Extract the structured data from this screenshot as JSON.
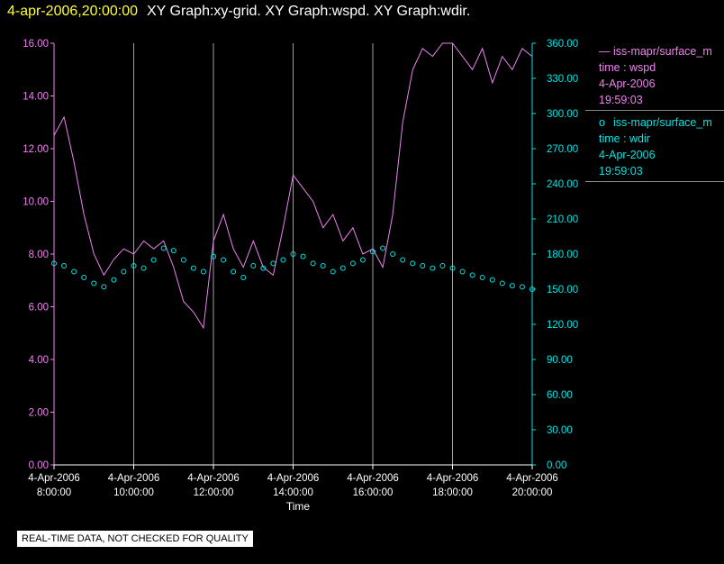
{
  "header": {
    "timestamp": "4-apr-2006,20:00:00",
    "titles": "XY Graph:xy-grid.  XY Graph:wspd.  XY Graph:wdir."
  },
  "colors": {
    "wspd": "#ee82ee",
    "wdir": "#00e5e5",
    "grid": "#a0a0a0",
    "timestamp": "#ffff33"
  },
  "legend": [
    {
      "marker": "line",
      "source": "iss-mapr/surface_m",
      "var": "time : wspd",
      "date": "4-Apr-2006",
      "time": "19:59:03"
    },
    {
      "marker": "circle",
      "source": "iss-mapr/surface_m",
      "var": "time : wdir",
      "date": "4-Apr-2006",
      "time": "19:59:03"
    }
  ],
  "footer": {
    "qc_note": "REAL-TIME DATA, NOT CHECKED FOR QUALITY"
  },
  "chart_data": {
    "type": "line",
    "xlabel": "Time",
    "x_ticks": [
      {
        "t": 8,
        "date": "4-Apr-2006",
        "time": "8:00:00"
      },
      {
        "t": 10,
        "date": "4-Apr-2006",
        "time": "10:00:00"
      },
      {
        "t": 12,
        "date": "4-Apr-2006",
        "time": "12:00:00"
      },
      {
        "t": 14,
        "date": "4-Apr-2006",
        "time": "14:00:00"
      },
      {
        "t": 16,
        "date": "4-Apr-2006",
        "time": "16:00:00"
      },
      {
        "t": 18,
        "date": "4-Apr-2006",
        "time": "18:00:00"
      },
      {
        "t": 20,
        "date": "4-Apr-2006",
        "time": "20:00:00"
      }
    ],
    "xlim": [
      8,
      20
    ],
    "y_left": {
      "ylim": [
        0,
        16
      ],
      "ticks": [
        "0.00",
        "2.00",
        "4.00",
        "6.00",
        "8.00",
        "10.00",
        "12.00",
        "14.00",
        "16.00"
      ]
    },
    "y_right": {
      "ylim": [
        0,
        360
      ],
      "ticks": [
        "0.00",
        "30.00",
        "60.00",
        "90.00",
        "120.00",
        "150.00",
        "180.00",
        "210.00",
        "240.00",
        "270.00",
        "300.00",
        "330.00",
        "360.00"
      ]
    },
    "grid": "vertical",
    "series": [
      {
        "name": "time : wspd",
        "axis": "left",
        "style": "line",
        "x": [
          8.0,
          8.25,
          8.5,
          8.75,
          9.0,
          9.25,
          9.5,
          9.75,
          10.0,
          10.25,
          10.5,
          10.75,
          11.0,
          11.25,
          11.5,
          11.75,
          12.0,
          12.25,
          12.5,
          12.75,
          13.0,
          13.25,
          13.5,
          13.75,
          14.0,
          14.25,
          14.5,
          14.75,
          15.0,
          15.25,
          15.5,
          15.75,
          16.0,
          16.25,
          16.5,
          16.75,
          17.0,
          17.25,
          17.5,
          17.75,
          18.0,
          18.25,
          18.5,
          18.75,
          19.0,
          19.25,
          19.5,
          19.75,
          20.0
        ],
        "y": [
          12.5,
          13.2,
          11.5,
          9.5,
          8.0,
          7.2,
          7.8,
          8.2,
          8.0,
          8.5,
          8.2,
          8.5,
          7.5,
          6.2,
          5.8,
          5.2,
          8.5,
          9.5,
          8.2,
          7.5,
          8.5,
          7.5,
          7.2,
          9.0,
          11.0,
          10.5,
          10.0,
          9.0,
          9.5,
          8.5,
          9.0,
          8.0,
          8.2,
          7.5,
          9.5,
          13.0,
          15.0,
          15.8,
          15.5,
          16.0,
          16.0,
          15.5,
          15.0,
          15.8,
          14.5,
          15.5,
          15.0,
          15.8,
          15.5
        ]
      },
      {
        "name": "time : wdir",
        "axis": "right",
        "style": "markers",
        "x": [
          8.0,
          8.25,
          8.5,
          8.75,
          9.0,
          9.25,
          9.5,
          9.75,
          10.0,
          10.25,
          10.5,
          10.75,
          11.0,
          11.25,
          11.5,
          11.75,
          12.0,
          12.25,
          12.5,
          12.75,
          13.0,
          13.25,
          13.5,
          13.75,
          14.0,
          14.25,
          14.5,
          14.75,
          15.0,
          15.25,
          15.5,
          15.75,
          16.0,
          16.25,
          16.5,
          16.75,
          17.0,
          17.25,
          17.5,
          17.75,
          18.0,
          18.25,
          18.5,
          18.75,
          19.0,
          19.25,
          19.5,
          19.75,
          20.0
        ],
        "y": [
          172,
          170,
          165,
          160,
          155,
          152,
          158,
          165,
          170,
          168,
          175,
          185,
          183,
          175,
          168,
          165,
          178,
          175,
          165,
          160,
          170,
          168,
          172,
          175,
          180,
          178,
          172,
          170,
          165,
          168,
          172,
          175,
          182,
          185,
          180,
          175,
          172,
          170,
          168,
          170,
          168,
          165,
          162,
          160,
          158,
          155,
          153,
          152,
          150
        ]
      }
    ]
  }
}
